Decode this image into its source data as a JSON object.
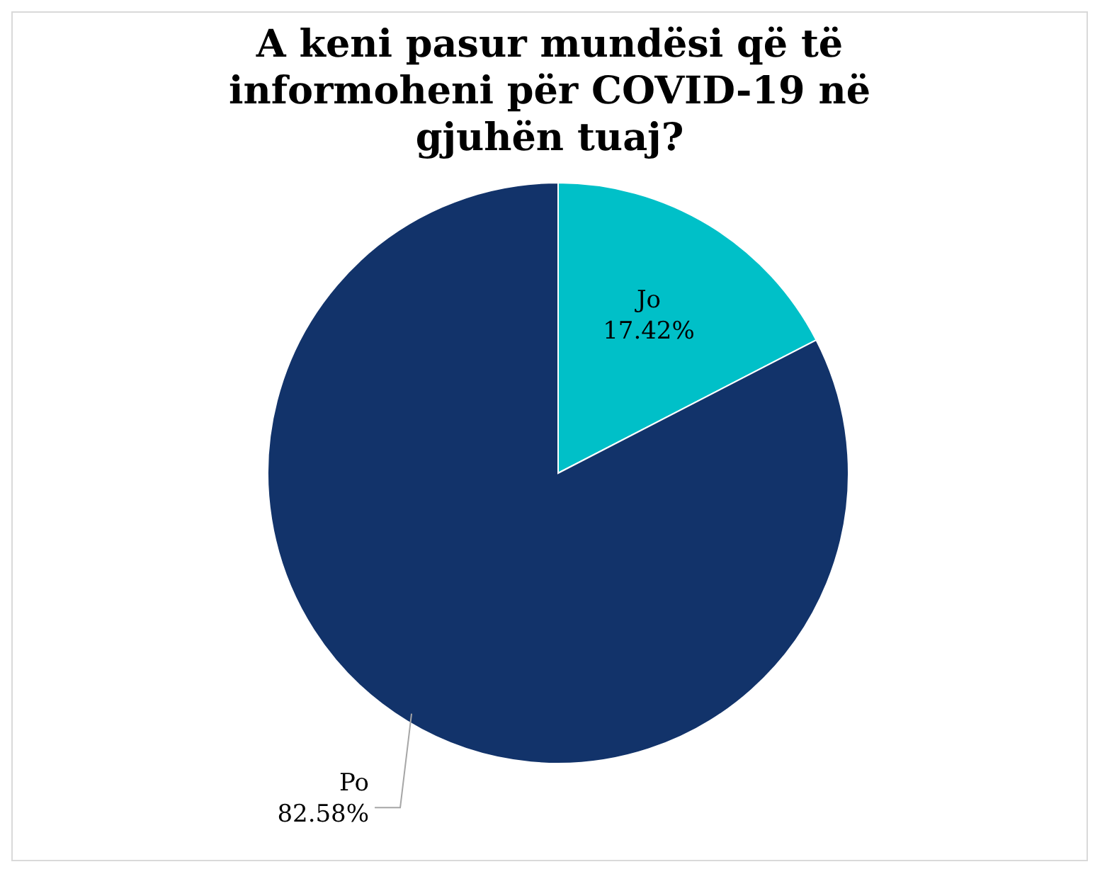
{
  "chart_data": {
    "type": "pie",
    "title": "A keni pasur mundësi që të informoheni për COVID-19 në gjuhën tuaj?",
    "categories": [
      "Jo",
      "Po"
    ],
    "values": [
      17.42,
      82.58
    ],
    "colors": [
      "#00c0c8",
      "#12336a"
    ],
    "value_labels": [
      "17.42%",
      "82.58%"
    ]
  }
}
